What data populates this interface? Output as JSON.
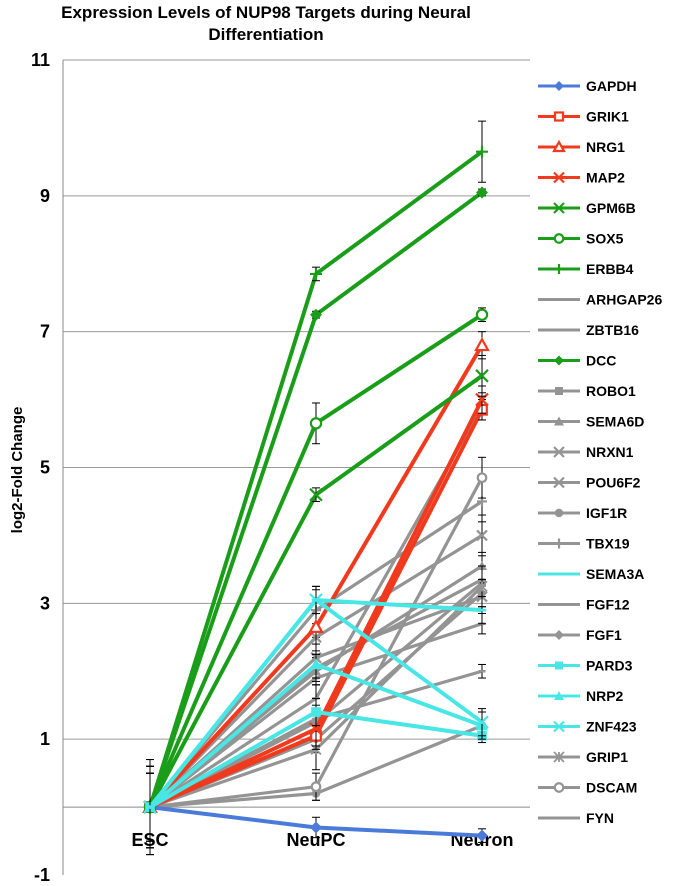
{
  "chart_data": {
    "type": "line",
    "title_lines": [
      "Expression Levels of NUP98 Targets during Neural",
      "Differentiation"
    ],
    "xlabel": "",
    "ylabel": "log2-Fold Change",
    "categories": [
      "ESC",
      "NeuPC",
      "Neuron"
    ],
    "ylim": [
      -1,
      11
    ],
    "yticks": [
      -1,
      1,
      3,
      5,
      7,
      9,
      11
    ],
    "grid": true,
    "legend_position": "right",
    "series": [
      {
        "name": "GAPDH",
        "color": "#4a7bd8",
        "marker": "diamond",
        "values": [
          0,
          -0.3,
          -0.42
        ],
        "err": [
          0.7,
          0.15,
          0.1
        ]
      },
      {
        "name": "GRIK1",
        "color": "#f0391d",
        "marker": "square-open",
        "values": [
          0,
          1.05,
          5.85
        ],
        "err": [
          0.7,
          0.15,
          0.15
        ]
      },
      {
        "name": "NRG1",
        "color": "#f0391d",
        "marker": "triangle-open",
        "values": [
          0,
          2.65,
          6.8
        ],
        "err": [
          0.6,
          0.4,
          0.2
        ]
      },
      {
        "name": "MAP2",
        "color": "#f0391d",
        "marker": "x",
        "values": [
          0,
          1.15,
          6.0
        ],
        "err": [
          0.6,
          0.3,
          0.2
        ]
      },
      {
        "name": "GPM6B",
        "color": "#1a9e1a",
        "marker": "x",
        "values": [
          0,
          4.6,
          6.35
        ],
        "err": [
          0.6,
          0.1,
          0.3
        ]
      },
      {
        "name": "SOX5",
        "color": "#1a9e1a",
        "marker": "circle-open",
        "values": [
          0,
          5.65,
          7.25
        ],
        "err": [
          0.6,
          0.3,
          0.1
        ]
      },
      {
        "name": "ERBB4",
        "color": "#1a9e1a",
        "marker": "plus",
        "values": [
          0,
          7.85,
          9.65
        ],
        "err": [
          0.6,
          0.1,
          0.45
        ]
      },
      {
        "name": "ARHGAP26",
        "color": "#949494",
        "marker": "dash",
        "values": [
          0,
          1.3,
          2.0
        ],
        "err": [
          0.5,
          0.2,
          0.1
        ]
      },
      {
        "name": "ZBTB16",
        "color": "#949494",
        "marker": "dash",
        "values": [
          0,
          1.9,
          2.7
        ],
        "err": [
          0.5,
          0.3,
          0.15
        ]
      },
      {
        "name": "DCC",
        "color": "#1a9e1a",
        "marker": "diamond",
        "values": [
          0,
          7.25,
          9.05
        ],
        "err": [
          0.5,
          0.05,
          0.05
        ]
      },
      {
        "name": "ROBO1",
        "color": "#949494",
        "marker": "square",
        "values": [
          0,
          1.25,
          3.3
        ],
        "err": [
          0.5,
          0.2,
          0.2
        ]
      },
      {
        "name": "SEMA6D",
        "color": "#949494",
        "marker": "triangle",
        "values": [
          0,
          2.0,
          3.55
        ],
        "err": [
          0.5,
          0.2,
          0.2
        ]
      },
      {
        "name": "NRXN1",
        "color": "#949494",
        "marker": "x",
        "values": [
          0,
          2.2,
          3.1
        ],
        "err": [
          0.5,
          0.3,
          0.2
        ]
      },
      {
        "name": "POU6F2",
        "color": "#949494",
        "marker": "x",
        "values": [
          0,
          2.5,
          4.0
        ],
        "err": [
          0.5,
          0.2,
          0.3
        ]
      },
      {
        "name": "IGF1R",
        "color": "#949494",
        "marker": "circle",
        "values": [
          0,
          0.2,
          1.2
        ],
        "err": [
          0.5,
          0.1,
          0.2
        ]
      },
      {
        "name": "TBX19",
        "color": "#949494",
        "marker": "plus",
        "values": [
          0,
          2.9,
          4.5
        ],
        "err": [
          0.5,
          0.3,
          0.3
        ]
      },
      {
        "name": "SEMA3A",
        "color": "#49e6e6",
        "marker": "dash",
        "values": [
          0,
          3.05,
          2.9
        ],
        "err": [
          0.5,
          0.2,
          0.2
        ]
      },
      {
        "name": "FGF12",
        "color": "#949494",
        "marker": "dash",
        "values": [
          0,
          2.05,
          3.35
        ],
        "err": [
          0.5,
          0.2,
          0.2
        ]
      },
      {
        "name": "FGF1",
        "color": "#949494",
        "marker": "diamond",
        "values": [
          0,
          1.0,
          3.15
        ],
        "err": [
          0.5,
          0.2,
          0.2
        ]
      },
      {
        "name": "PARD3",
        "color": "#49e6e6",
        "marker": "square",
        "values": [
          0,
          1.4,
          1.05
        ],
        "err": [
          0.5,
          0.2,
          0.1
        ]
      },
      {
        "name": "NRP2",
        "color": "#49e6e6",
        "marker": "triangle",
        "values": [
          0,
          2.1,
          1.2
        ],
        "err": [
          0.5,
          0.3,
          0.2
        ]
      },
      {
        "name": "ZNF423",
        "color": "#49e6e6",
        "marker": "x",
        "values": [
          0,
          3.05,
          1.25
        ],
        "err": [
          0.5,
          0.2,
          0.2
        ]
      },
      {
        "name": "GRIP1",
        "color": "#949494",
        "marker": "asterisk",
        "values": [
          0,
          0.85,
          3.25
        ],
        "err": [
          0.5,
          0.3,
          0.3
        ]
      },
      {
        "name": "DSCAM",
        "color": "#949494",
        "marker": "circle-open",
        "values": [
          0,
          0.3,
          4.85
        ],
        "err": [
          0.5,
          0.2,
          0.3
        ]
      },
      {
        "name": "FYN",
        "color": "#949494",
        "marker": "dash",
        "values": [
          0,
          1.6,
          5.9
        ],
        "err": [
          0.5,
          0.2,
          0.2
        ]
      }
    ]
  }
}
